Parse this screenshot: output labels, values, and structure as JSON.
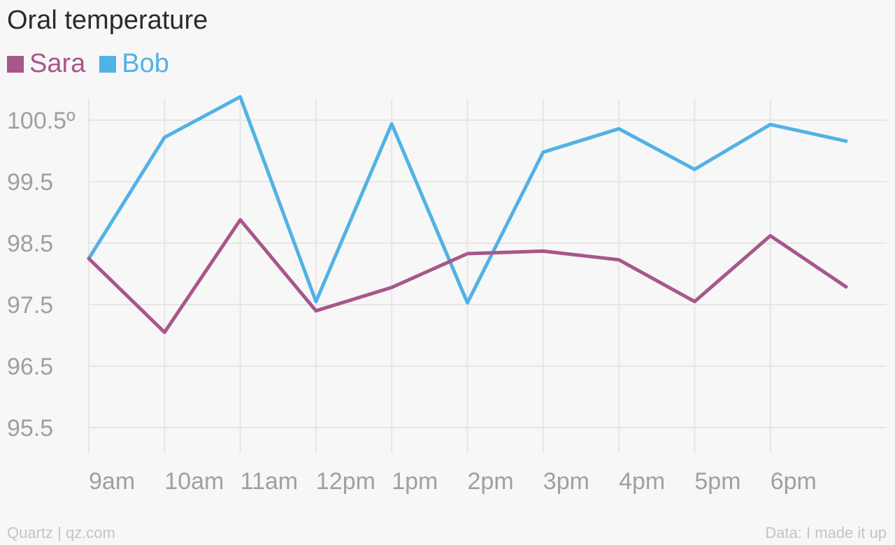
{
  "chart_data": {
    "type": "line",
    "title": "Oral temperature",
    "categories": [
      "9am",
      "10am",
      "11am",
      "12pm",
      "1pm",
      "2pm",
      "3pm",
      "4pm",
      "5pm",
      "6pm",
      ""
    ],
    "x_tick_labels": [
      "9am",
      "10am",
      "11am",
      "12pm",
      "1pm",
      "2pm",
      "3pm",
      "4pm",
      "5pm",
      "6pm"
    ],
    "y_tick_labels": [
      "100.5º",
      "99.5",
      "98.5",
      "97.5",
      "96.5",
      "95.5"
    ],
    "y_ticks": [
      100.5,
      99.5,
      98.5,
      97.5,
      96.5,
      95.5
    ],
    "ylim": [
      95.5,
      100.9
    ],
    "grid": true,
    "legend_position": "top-left",
    "series": [
      {
        "name": "Sara",
        "color": "#a7578a",
        "values": [
          98.25,
          97.05,
          98.88,
          97.4,
          97.78,
          98.33,
          98.37,
          98.23,
          97.55,
          98.62,
          97.79
        ]
      },
      {
        "name": "Bob",
        "color": "#51b2e5",
        "values": [
          98.25,
          100.22,
          100.88,
          97.55,
          100.44,
          97.53,
          99.98,
          100.36,
          99.7,
          100.43,
          100.16
        ]
      }
    ]
  },
  "footer": {
    "source_left": "Quartz | qz.com",
    "source_right": "Data: I made it up"
  }
}
